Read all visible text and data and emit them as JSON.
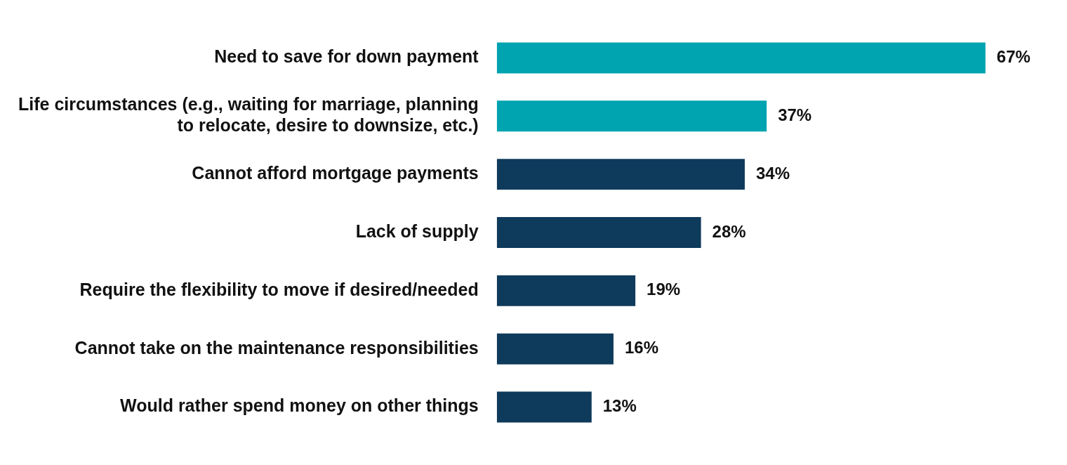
{
  "chart_data": {
    "type": "bar",
    "orientation": "horizontal",
    "categories": [
      "Need to save for down payment",
      "Life circumstances (e.g., waiting for marriage, planning to relocate, desire to downsize, etc.)",
      "Cannot afford mortgage payments",
      "Lack of supply",
      "Require the flexibility to move if desired/needed",
      "Cannot take on the maintenance responsibilities",
      "Would rather spend money on other things"
    ],
    "values": [
      67,
      37,
      34,
      28,
      19,
      16,
      13
    ],
    "colors": [
      "#00a3b0",
      "#00a3b0",
      "#0e3a5c",
      "#0e3a5c",
      "#0e3a5c",
      "#0e3a5c",
      "#0e3a5c"
    ],
    "value_labels": [
      "67%",
      "37%",
      "34%",
      "28%",
      "19%",
      "16%",
      "13%"
    ],
    "legend": false
  }
}
